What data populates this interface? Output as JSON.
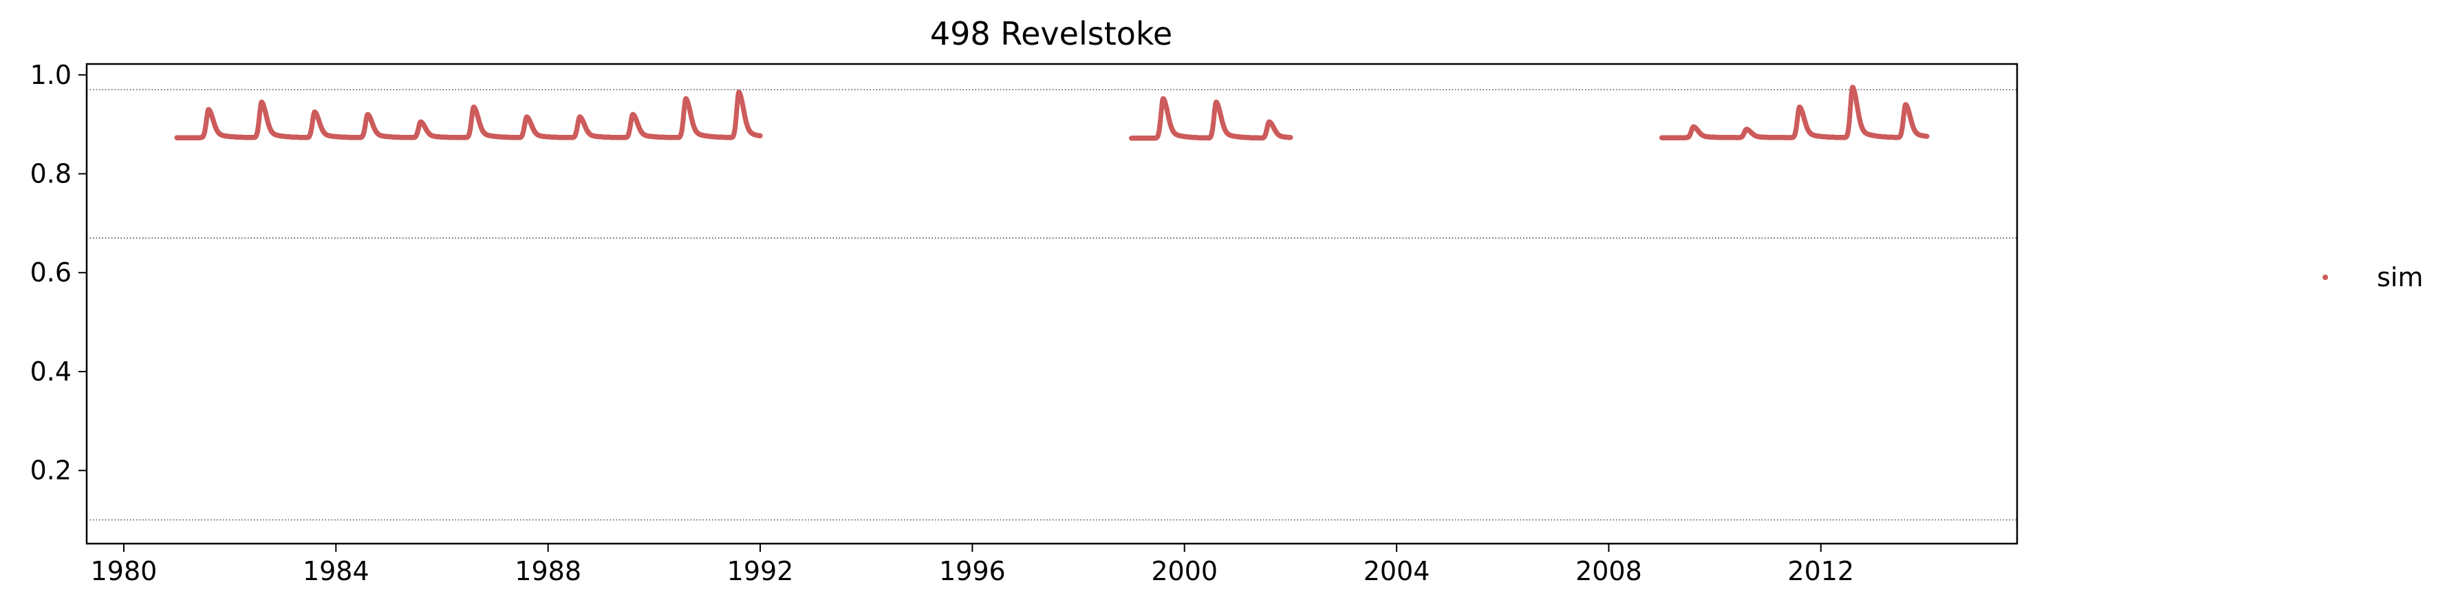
{
  "chart_data": {
    "type": "scatter",
    "title": "498  Revelstoke",
    "xlabel": "",
    "ylabel": "",
    "xlim": [
      1979.3,
      2015.7
    ],
    "ylim": [
      0.052,
      1.022
    ],
    "x_ticks": [
      1980,
      1984,
      1988,
      1992,
      1996,
      2000,
      2004,
      2008,
      2012
    ],
    "y_ticks": [
      0.2,
      0.4,
      0.6,
      0.8,
      1.0
    ],
    "x_tick_labels": [
      "1980",
      "1984",
      "1988",
      "1992",
      "1996",
      "2000",
      "2004",
      "2008",
      "2012"
    ],
    "y_tick_labels": [
      "0.2",
      "0.4",
      "0.6",
      "0.8",
      "1.0"
    ],
    "hlines": [
      0.97,
      0.67,
      0.1
    ],
    "legend_position": "right",
    "grid": false,
    "series": [
      {
        "name": "sim",
        "color": "#cd5c5c",
        "marker": "point",
        "segments": [
          {
            "start": 1981.0,
            "end": 1992.0,
            "baseline": 0.873,
            "peaks": [
              {
                "x": 1981.6,
                "y": 0.93
              },
              {
                "x": 1982.6,
                "y": 0.945
              },
              {
                "x": 1983.6,
                "y": 0.925
              },
              {
                "x": 1984.6,
                "y": 0.92
              },
              {
                "x": 1985.6,
                "y": 0.905
              },
              {
                "x": 1986.6,
                "y": 0.935
              },
              {
                "x": 1987.6,
                "y": 0.915
              },
              {
                "x": 1988.6,
                "y": 0.915
              },
              {
                "x": 1989.6,
                "y": 0.92
              },
              {
                "x": 1990.6,
                "y": 0.952
              },
              {
                "x": 1991.6,
                "y": 0.965
              }
            ]
          },
          {
            "start": 1999.0,
            "end": 2002.0,
            "baseline": 0.872,
            "peaks": [
              {
                "x": 1999.6,
                "y": 0.952
              },
              {
                "x": 2000.6,
                "y": 0.945
              },
              {
                "x": 2001.6,
                "y": 0.905
              }
            ]
          },
          {
            "start": 2009.0,
            "end": 2014.0,
            "baseline": 0.873,
            "peaks": [
              {
                "x": 2009.6,
                "y": 0.895
              },
              {
                "x": 2010.6,
                "y": 0.89
              },
              {
                "x": 2011.6,
                "y": 0.935
              },
              {
                "x": 2012.6,
                "y": 0.975
              },
              {
                "x": 2013.6,
                "y": 0.94
              }
            ]
          }
        ]
      }
    ]
  }
}
